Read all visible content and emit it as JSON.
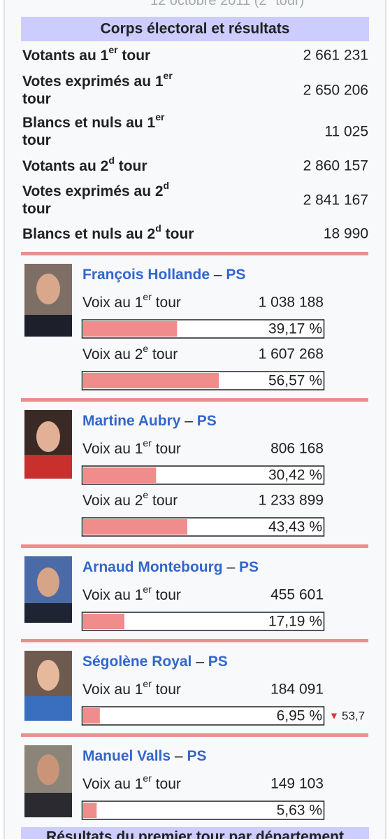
{
  "header": {
    "cut_text": [
      "12 octobre 2011 (2",
      "e",
      " tour)"
    ],
    "section_title": "Corps électoral et résultats"
  },
  "stats": [
    {
      "label": [
        "Votants au 1",
        "er",
        " tour"
      ],
      "value": "2 661 231"
    },
    {
      "label": [
        "Votes exprimés au 1",
        "er",
        " tour"
      ],
      "value": "2 650 206"
    },
    {
      "label": [
        "Blancs et nuls au 1",
        "er",
        " tour"
      ],
      "value": "11 025"
    },
    {
      "label": [
        "Votants au 2",
        "d",
        " tour"
      ],
      "value": "2 860 157"
    },
    {
      "label": [
        "Votes exprimés au 2",
        "d",
        " tour"
      ],
      "value": "2 841 167"
    },
    {
      "label": [
        "Blancs et nuls au 2",
        "d",
        " tour"
      ],
      "value": "18 990"
    }
  ],
  "candidates": [
    {
      "name": "François Hollande",
      "separator": "–",
      "party": "PS",
      "rounds": [
        {
          "label": [
            "Voix au 1",
            "er",
            " tour"
          ],
          "votes": "1 038 188",
          "percent": 39.17,
          "percent_label": "39,17 %"
        },
        {
          "label": [
            "Voix au 2",
            "e",
            " tour"
          ],
          "votes": "1 607 268",
          "percent": 56.57,
          "percent_label": "56,57 %"
        }
      ]
    },
    {
      "name": "Martine Aubry",
      "separator": "–",
      "party": "PS",
      "rounds": [
        {
          "label": [
            "Voix au 1",
            "er",
            " tour"
          ],
          "votes": "806 168",
          "percent": 30.42,
          "percent_label": "30,42 %"
        },
        {
          "label": [
            "Voix au 2",
            "e",
            " tour"
          ],
          "votes": "1 233 899",
          "percent": 43.43,
          "percent_label": "43,43 %"
        }
      ]
    },
    {
      "name": "Arnaud Montebourg",
      "separator": "–",
      "party": "PS",
      "rounds": [
        {
          "label": [
            "Voix au 1",
            "er",
            " tour"
          ],
          "votes": "455 601",
          "percent": 17.19,
          "percent_label": "17,19 %"
        }
      ]
    },
    {
      "name": "Ségolène Royal",
      "separator": "–",
      "party": "PS",
      "rounds": [
        {
          "label": [
            "Voix au 1",
            "er",
            " tour"
          ],
          "votes": "184 091",
          "percent": 6.95,
          "percent_label": "6,95 %",
          "trend_arrow": "▼",
          "trend": "53,7"
        }
      ]
    },
    {
      "name": "Manuel Valls",
      "separator": "–",
      "party": "PS",
      "rounds": [
        {
          "label": [
            "Voix au 1",
            "er",
            " tour"
          ],
          "votes": "149 103",
          "percent": 5.63,
          "percent_label": "5,63 %"
        }
      ]
    }
  ],
  "footer": {
    "title": "Résultats du premier tour par département"
  }
}
